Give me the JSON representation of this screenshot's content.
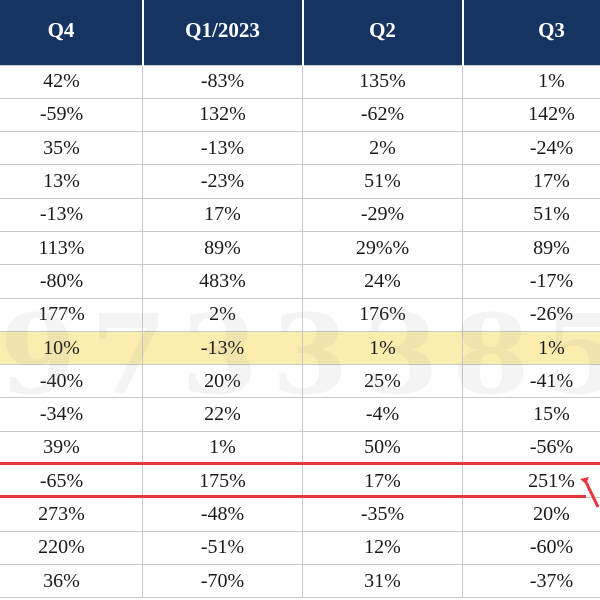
{
  "table": {
    "headers": [
      "Q4",
      "Q1/2023",
      "Q2",
      "Q3"
    ],
    "rows": [
      [
        "42%",
        "-83%",
        "135%",
        "1%"
      ],
      [
        "-59%",
        "132%",
        "-62%",
        "142%"
      ],
      [
        "35%",
        "-13%",
        "2%",
        "-24%"
      ],
      [
        "13%",
        "-23%",
        "51%",
        "17%"
      ],
      [
        "-13%",
        "17%",
        "-29%",
        "51%"
      ],
      [
        "113%",
        "89%",
        "29%%",
        "89%"
      ],
      [
        "-80%",
        "483%",
        "24%",
        "-17%"
      ],
      [
        "177%",
        "2%",
        "176%",
        "-26%"
      ],
      [
        "10%",
        "-13%",
        "1%",
        "1%"
      ],
      [
        "-40%",
        "20%",
        "25%",
        "-41%"
      ],
      [
        "-34%",
        "22%",
        "-4%",
        "15%"
      ],
      [
        "39%",
        "1%",
        "50%",
        "-56%"
      ],
      [
        "-65%",
        "175%",
        "17%",
        "251%"
      ],
      [
        "273%",
        "-48%",
        "-35%",
        "20%"
      ],
      [
        "220%",
        "-51%",
        "12%",
        "-60%"
      ],
      [
        "36%",
        "-70%",
        "31%",
        "-37%"
      ]
    ],
    "highlighted_row": 8,
    "circled_row": 12
  },
  "colors": {
    "header_bg": "#153461",
    "highlight_row": "#fbedae",
    "annotation": "#e8343a"
  },
  "watermark": "9733385"
}
